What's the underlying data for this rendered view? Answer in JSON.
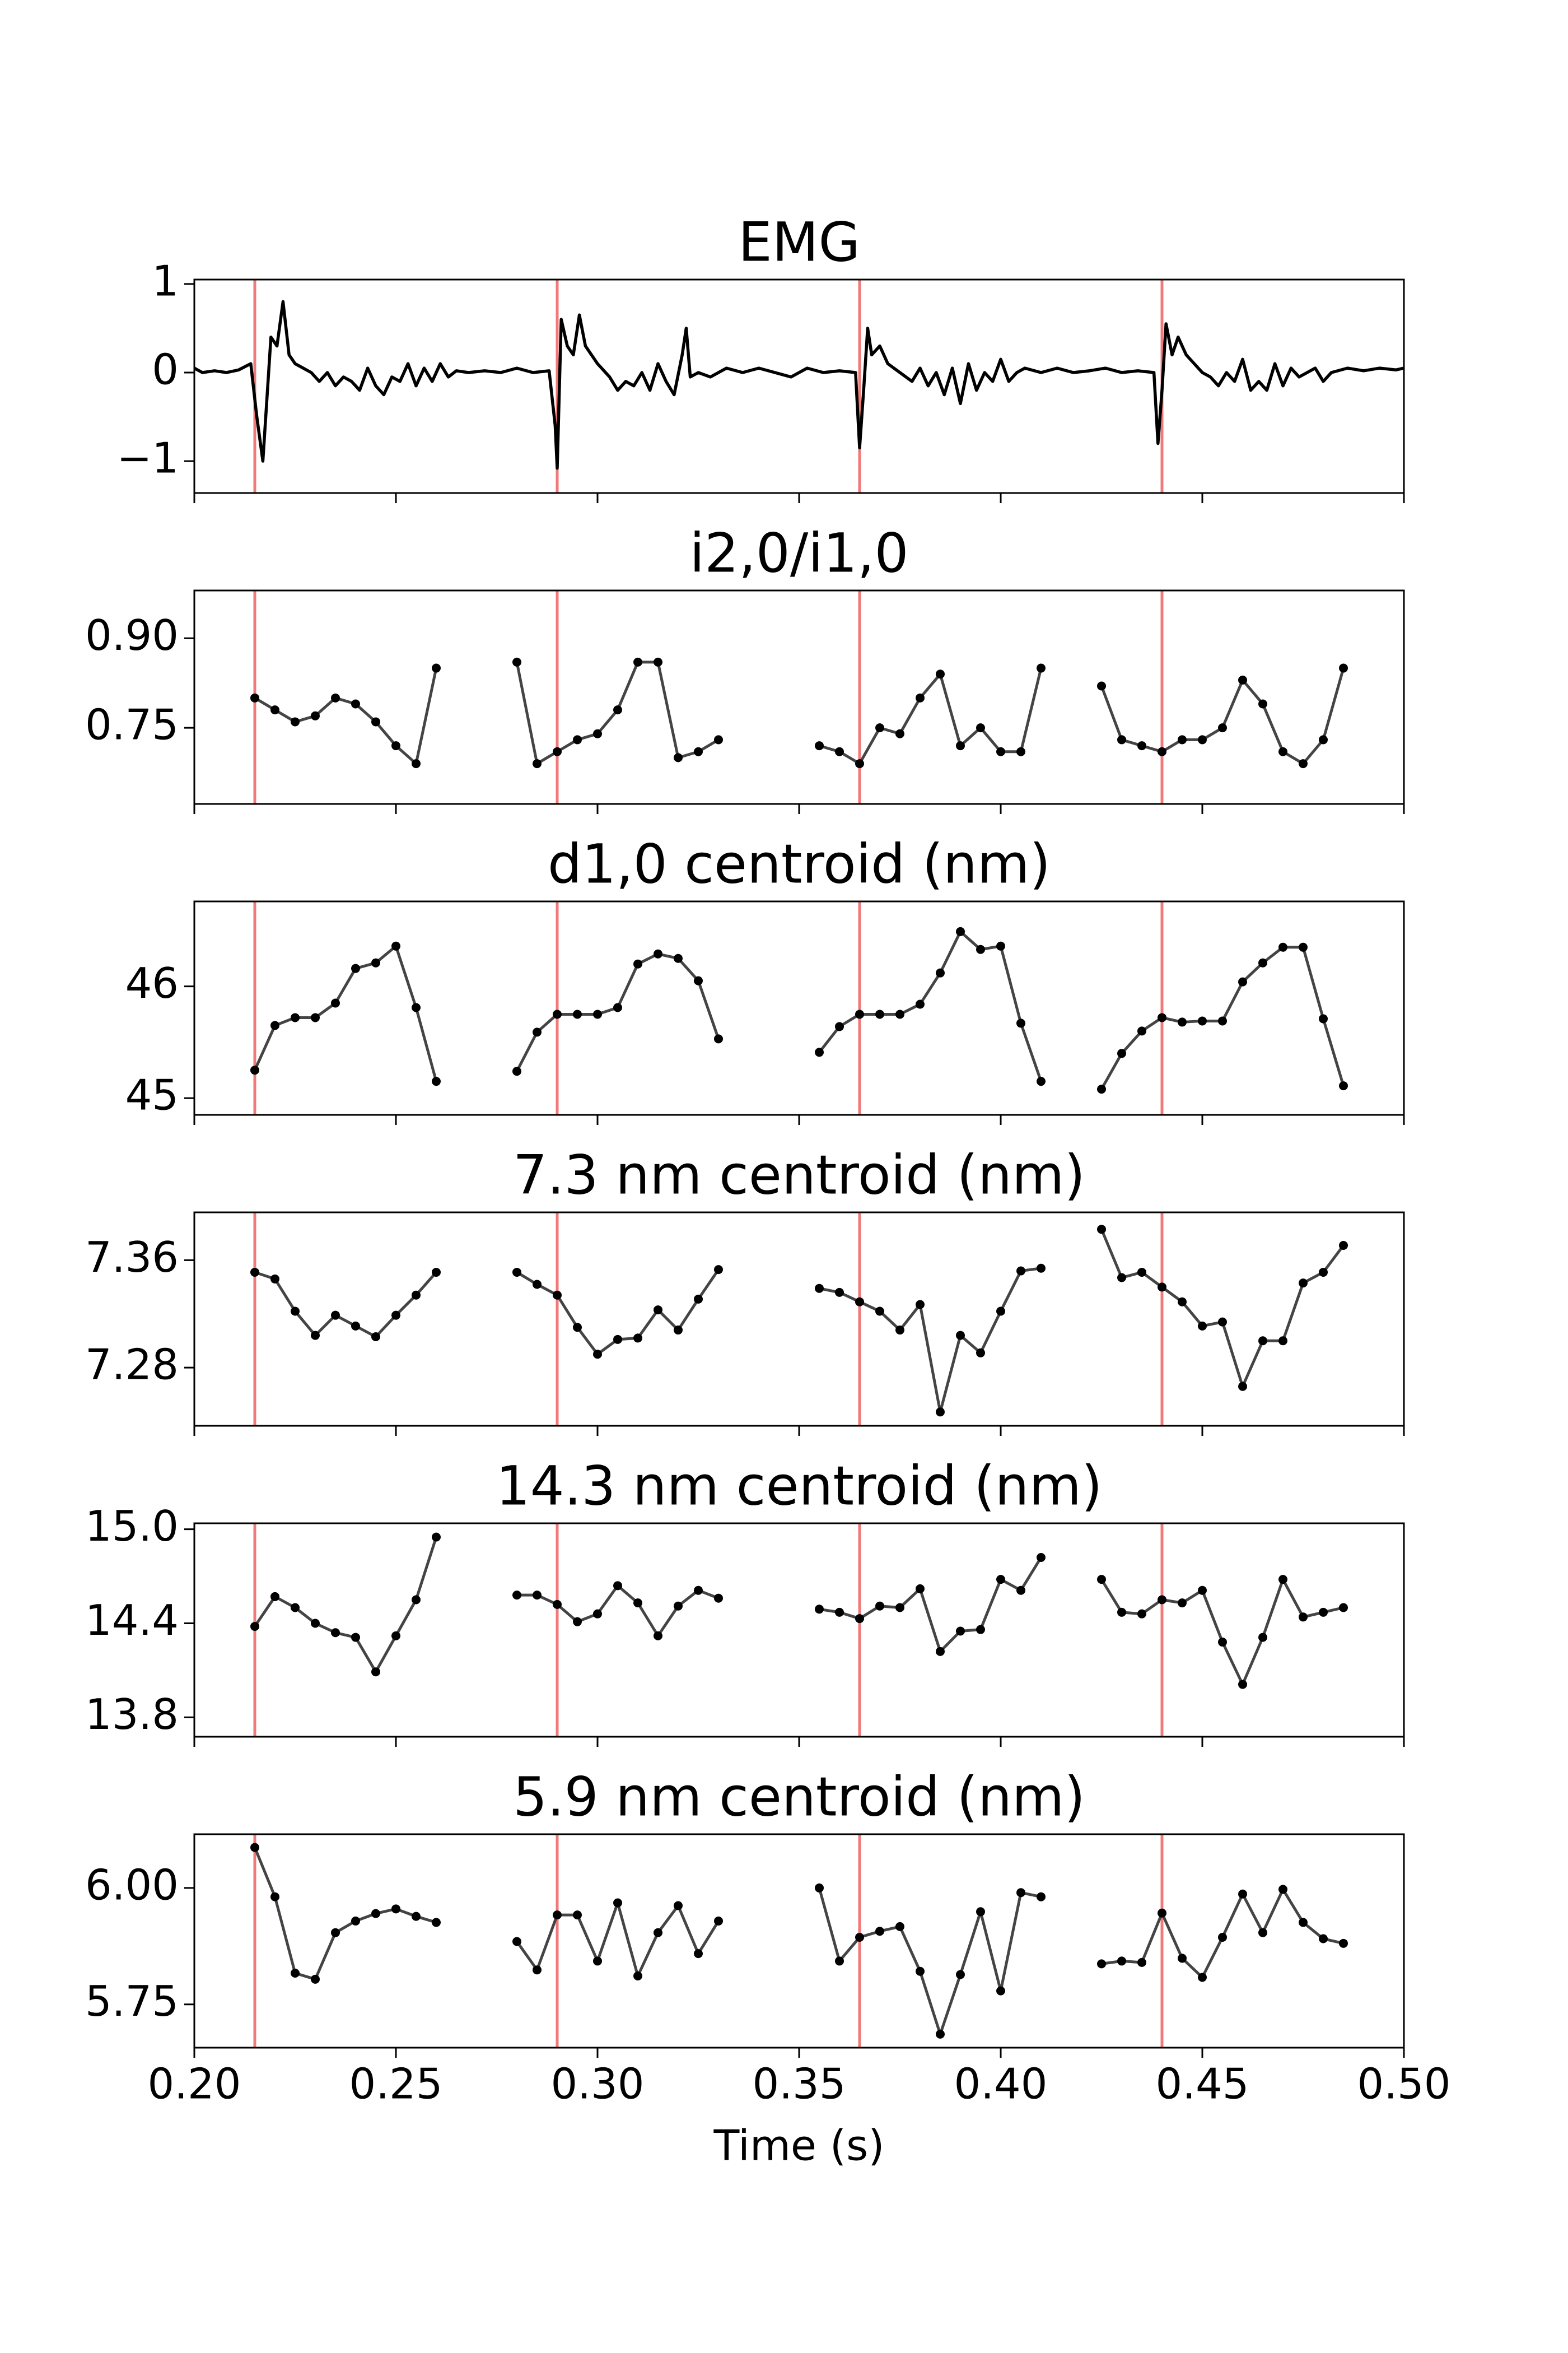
{
  "chart_data": [
    {
      "type": "line",
      "title": "EMG",
      "color": "#000000",
      "markers": false,
      "vline_color": "#f07a7a",
      "xlim": [
        0.2,
        0.5
      ],
      "xticks": [
        {
          "value": 0.2,
          "label": "0.20"
        },
        {
          "value": 0.25,
          "label": "0.25"
        },
        {
          "value": 0.3,
          "label": "0.30"
        },
        {
          "value": 0.35,
          "label": "0.35"
        },
        {
          "value": 0.4,
          "label": "0.40"
        },
        {
          "value": 0.45,
          "label": "0.45"
        },
        {
          "value": 0.5,
          "label": "0.50"
        }
      ],
      "ylim": [
        -1.36,
        1.05
      ],
      "yticks": [
        1,
        0,
        {
          "value": -1,
          "label": "−1"
        }
      ],
      "vlines": [
        0.215,
        0.29,
        0.365,
        0.44
      ],
      "segments": [
        {
          "x": [
            0.2,
            0.202,
            0.205,
            0.208,
            0.211,
            0.214,
            0.2155,
            0.217,
            0.218,
            0.219,
            0.2205,
            0.222,
            0.2235,
            0.225,
            0.227,
            0.229,
            0.231,
            0.233,
            0.235,
            0.237,
            0.239,
            0.241,
            0.243,
            0.245,
            0.247,
            0.249,
            0.251,
            0.253,
            0.255,
            0.257,
            0.259,
            0.261,
            0.263,
            0.265,
            0.268,
            0.272,
            0.276,
            0.28,
            0.284,
            0.288,
            0.2895,
            0.29,
            0.291,
            0.2925,
            0.294,
            0.2955,
            0.297,
            0.3,
            0.303,
            0.305,
            0.307,
            0.309,
            0.311,
            0.313,
            0.315,
            0.317,
            0.319,
            0.321,
            0.322,
            0.323,
            0.325,
            0.328,
            0.332,
            0.336,
            0.34,
            0.344,
            0.348,
            0.352,
            0.356,
            0.36,
            0.364,
            0.365,
            0.366,
            0.367,
            0.368,
            0.37,
            0.372,
            0.375,
            0.378,
            0.38,
            0.382,
            0.384,
            0.386,
            0.388,
            0.39,
            0.392,
            0.394,
            0.396,
            0.398,
            0.4,
            0.402,
            0.404,
            0.406,
            0.41,
            0.414,
            0.418,
            0.422,
            0.426,
            0.43,
            0.434,
            0.438,
            0.439,
            0.44,
            0.441,
            0.4425,
            0.444,
            0.446,
            0.448,
            0.45,
            0.452,
            0.454,
            0.456,
            0.458,
            0.46,
            0.462,
            0.464,
            0.466,
            0.468,
            0.47,
            0.472,
            0.474,
            0.476,
            0.478,
            0.48,
            0.482,
            0.486,
            0.49,
            0.494,
            0.498,
            0.5
          ],
          "values": [
            0.05,
            0,
            0.02,
            0,
            0.03,
            0.1,
            -0.5,
            -1.0,
            -0.3,
            0.4,
            0.3,
            0.8,
            0.2,
            0.1,
            0.05,
            0,
            -0.1,
            0,
            -0.15,
            -0.05,
            -0.1,
            -0.2,
            0.05,
            -0.15,
            -0.25,
            -0.05,
            -0.1,
            0.1,
            -0.15,
            0.05,
            -0.1,
            0.1,
            -0.05,
            0.02,
            0,
            0.02,
            0,
            0.05,
            0,
            0.02,
            -0.6,
            -1.08,
            0.6,
            0.3,
            0.2,
            0.65,
            0.3,
            0.1,
            -0.05,
            -0.2,
            -0.1,
            -0.15,
            0,
            -0.2,
            0.1,
            -0.1,
            -0.25,
            0.2,
            0.5,
            -0.05,
            0,
            -0.05,
            0.05,
            0,
            0.05,
            0,
            -0.05,
            0.05,
            0,
            0.02,
            0,
            -0.85,
            -0.2,
            0.5,
            0.2,
            0.3,
            0.1,
            0,
            -0.1,
            0.05,
            -0.15,
            0,
            -0.25,
            0.05,
            -0.35,
            0.1,
            -0.2,
            0,
            -0.1,
            0.15,
            -0.1,
            0,
            0.05,
            0,
            0.05,
            0,
            0.02,
            0.05,
            0,
            0.02,
            0,
            -0.8,
            -0.2,
            0.55,
            0.2,
            0.4,
            0.2,
            0.1,
            0,
            -0.05,
            -0.15,
            0,
            -0.1,
            0.15,
            -0.2,
            -0.1,
            -0.2,
            0.1,
            -0.15,
            0.05,
            -0.05,
            0,
            0.05,
            -0.1,
            0,
            0.05,
            0.02,
            0.05,
            0.03,
            0.05
          ]
        }
      ]
    },
    {
      "type": "line",
      "title": "i2,0/i1,0",
      "color": "#444444",
      "markers": true,
      "vline_color": "#f07a7a",
      "xlim": [
        0.2,
        0.5
      ],
      "xticks": [
        0.2,
        0.25,
        0.3,
        0.35,
        0.4,
        0.45,
        0.5
      ],
      "ylim": [
        0.6225,
        0.98
      ],
      "yticks": [
        {
          "value": 0.9,
          "label": "0.90"
        },
        0.75
      ],
      "vlines": [
        0.215,
        0.29,
        0.365,
        0.44
      ],
      "segments": [
        {
          "x": [
            0.215,
            0.22,
            0.225,
            0.23,
            0.235,
            0.24,
            0.245,
            0.25,
            0.255,
            0.26
          ],
          "values": [
            0.8,
            0.78,
            0.76,
            0.77,
            0.8,
            0.79,
            0.76,
            0.72,
            0.69,
            0.85
          ]
        },
        {
          "x": [
            0.28,
            0.285,
            0.29,
            0.295,
            0.3,
            0.305,
            0.31,
            0.315,
            0.32,
            0.325,
            0.33
          ],
          "values": [
            0.86,
            0.69,
            0.71,
            0.73,
            0.74,
            0.78,
            0.86,
            0.86,
            0.7,
            0.71,
            0.73
          ]
        },
        {
          "x": [
            0.355,
            0.36,
            0.365,
            0.37,
            0.375,
            0.38,
            0.385,
            0.39,
            0.395,
            0.4,
            0.405,
            0.41
          ],
          "values": [
            0.72,
            0.71,
            0.69,
            0.75,
            0.74,
            0.8,
            0.84,
            0.72,
            0.75,
            0.71,
            0.71,
            0.85
          ]
        },
        {
          "x": [
            0.425,
            0.43,
            0.435,
            0.44,
            0.445,
            0.45,
            0.455,
            0.46,
            0.465,
            0.47,
            0.475,
            0.48,
            0.485
          ],
          "values": [
            0.82,
            0.73,
            0.72,
            0.71,
            0.73,
            0.73,
            0.75,
            0.83,
            0.79,
            0.71,
            0.69,
            0.73,
            0.85
          ]
        }
      ]
    },
    {
      "type": "line",
      "title": "d1,0 centroid (nm)",
      "color": "#444444",
      "markers": true,
      "vline_color": "#f07a7a",
      "xlim": [
        0.2,
        0.5
      ],
      "xticks": [
        0.2,
        0.25,
        0.3,
        0.35,
        0.4,
        0.45,
        0.5
      ],
      "ylim": [
        44.85,
        46.76
      ],
      "yticks": [
        46,
        45
      ],
      "vlines": [
        0.215,
        0.29,
        0.365,
        0.44
      ],
      "segments": [
        {
          "x": [
            0.215,
            0.22,
            0.225,
            0.23,
            0.235,
            0.24,
            0.245,
            0.25,
            0.255,
            0.26
          ],
          "values": [
            45.25,
            45.65,
            45.72,
            45.72,
            45.85,
            46.16,
            46.21,
            46.36,
            45.81,
            45.15
          ]
        },
        {
          "x": [
            0.28,
            0.285,
            0.29,
            0.295,
            0.3,
            0.305,
            0.31,
            0.315,
            0.32,
            0.325,
            0.33
          ],
          "values": [
            45.24,
            45.59,
            45.75,
            45.75,
            45.75,
            45.81,
            46.2,
            46.29,
            46.25,
            46.05,
            45.53
          ]
        },
        {
          "x": [
            0.355,
            0.36,
            0.365,
            0.37,
            0.375,
            0.38,
            0.385,
            0.39,
            0.395,
            0.4,
            0.405,
            0.41
          ],
          "values": [
            45.41,
            45.64,
            45.75,
            45.75,
            45.75,
            45.84,
            46.12,
            46.49,
            46.33,
            46.36,
            45.67,
            45.15
          ]
        },
        {
          "x": [
            0.425,
            0.43,
            0.435,
            0.44,
            0.445,
            0.45,
            0.455,
            0.46,
            0.465,
            0.47,
            0.475,
            0.48,
            0.485
          ],
          "values": [
            45.08,
            45.4,
            45.6,
            45.72,
            45.68,
            45.69,
            45.69,
            46.04,
            46.21,
            46.35,
            46.35,
            45.71,
            45.11
          ]
        }
      ]
    },
    {
      "type": "line",
      "title": "7.3 nm centroid (nm)",
      "color": "#444444",
      "markers": true,
      "vline_color": "#f07a7a",
      "xlim": [
        0.2,
        0.5
      ],
      "xticks": [
        0.2,
        0.25,
        0.3,
        0.35,
        0.4,
        0.45,
        0.5
      ],
      "ylim": [
        7.2367,
        7.3956
      ],
      "yticks": [
        7.36,
        7.28
      ],
      "vlines": [
        0.215,
        0.29,
        0.365,
        0.44
      ],
      "segments": [
        {
          "x": [
            0.215,
            0.22,
            0.225,
            0.23,
            0.235,
            0.24,
            0.245,
            0.25,
            0.255,
            0.26
          ],
          "values": [
            7.351,
            7.346,
            7.322,
            7.304,
            7.319,
            7.311,
            7.303,
            7.319,
            7.334,
            7.351
          ]
        },
        {
          "x": [
            0.28,
            0.285,
            0.29,
            0.295,
            0.3,
            0.305,
            0.31,
            0.315,
            0.32,
            0.325,
            0.33
          ],
          "values": [
            7.351,
            7.342,
            7.334,
            7.31,
            7.29,
            7.301,
            7.302,
            7.323,
            7.308,
            7.331,
            7.353
          ]
        },
        {
          "x": [
            0.355,
            0.36,
            0.365,
            0.37,
            0.375,
            0.38,
            0.385,
            0.39,
            0.395,
            0.4,
            0.405,
            0.41
          ],
          "values": [
            7.339,
            7.336,
            7.329,
            7.322,
            7.308,
            7.327,
            7.247,
            7.304,
            7.291,
            7.322,
            7.352,
            7.354
          ]
        },
        {
          "x": [
            0.425,
            0.43,
            0.435,
            0.44,
            0.445,
            0.45,
            0.455,
            0.46,
            0.465,
            0.47,
            0.475,
            0.48,
            0.485
          ],
          "values": [
            7.383,
            7.347,
            7.351,
            7.34,
            7.329,
            7.311,
            7.314,
            7.266,
            7.3,
            7.3,
            7.343,
            7.351,
            7.371
          ]
        }
      ]
    },
    {
      "type": "line",
      "title": "14.3 nm centroid (nm)",
      "color": "#444444",
      "markers": true,
      "vline_color": "#f07a7a",
      "xlim": [
        0.2,
        0.5
      ],
      "xticks": [
        0.2,
        0.25,
        0.3,
        0.35,
        0.4,
        0.45,
        0.5
      ],
      "ylim": [
        13.676,
        15.038
      ],
      "yticks": [
        {
          "value": 15,
          "label": "15.0"
        },
        14.4,
        13.8
      ],
      "vlines": [
        0.215,
        0.29,
        0.365,
        0.44
      ],
      "segments": [
        {
          "x": [
            0.215,
            0.22,
            0.225,
            0.23,
            0.235,
            0.24,
            0.245,
            0.25,
            0.255,
            0.26
          ],
          "values": [
            14.38,
            14.57,
            14.5,
            14.4,
            14.34,
            14.31,
            14.09,
            14.32,
            14.55,
            14.95
          ]
        },
        {
          "x": [
            0.28,
            0.285,
            0.29,
            0.295,
            0.3,
            0.305,
            0.31,
            0.315,
            0.32,
            0.325,
            0.33
          ],
          "values": [
            14.58,
            14.58,
            14.52,
            14.41,
            14.46,
            14.64,
            14.53,
            14.32,
            14.51,
            14.61,
            14.56
          ]
        },
        {
          "x": [
            0.355,
            0.36,
            0.365,
            0.37,
            0.375,
            0.38,
            0.385,
            0.39,
            0.395,
            0.4,
            0.405,
            0.41
          ],
          "values": [
            14.49,
            14.47,
            14.43,
            14.51,
            14.5,
            14.62,
            14.22,
            14.35,
            14.36,
            14.68,
            14.61,
            14.82
          ]
        },
        {
          "x": [
            0.425,
            0.43,
            0.435,
            0.44,
            0.445,
            0.45,
            0.455,
            0.46,
            0.465,
            0.47,
            0.475,
            0.48,
            0.485
          ],
          "values": [
            14.68,
            14.47,
            14.46,
            14.55,
            14.53,
            14.61,
            14.28,
            14.01,
            14.31,
            14.68,
            14.44,
            14.47,
            14.5
          ]
        }
      ]
    },
    {
      "type": "line",
      "title": "5.9 nm centroid (nm)",
      "color": "#444444",
      "markers": true,
      "vline_color": "#f07a7a",
      "xlabel": "Time (s)",
      "xlim": [
        0.2,
        0.5
      ],
      "xticks": [
        {
          "value": 0.2,
          "label": "0.20"
        },
        {
          "value": 0.25,
          "label": "0.25"
        },
        {
          "value": 0.3,
          "label": "0.30"
        },
        {
          "value": 0.35,
          "label": "0.35"
        },
        {
          "value": 0.4,
          "label": "0.40"
        },
        {
          "value": 0.45,
          "label": "0.45"
        },
        {
          "value": 0.5,
          "label": "0.50"
        }
      ],
      "ylim": [
        5.657,
        6.1154
      ],
      "yticks": [
        {
          "value": 6,
          "label": "6.00"
        },
        5.75
      ],
      "vlines": [
        0.215,
        0.29,
        0.365,
        0.44
      ],
      "segments": [
        {
          "x": [
            0.215,
            0.22,
            0.225,
            0.23,
            0.235,
            0.24,
            0.245,
            0.25,
            0.255,
            0.26
          ],
          "values": [
            6.087,
            5.981,
            5.817,
            5.804,
            5.904,
            5.929,
            5.945,
            5.955,
            5.939,
            5.926
          ]
        },
        {
          "x": [
            0.28,
            0.285,
            0.29,
            0.295,
            0.3,
            0.305,
            0.31,
            0.315,
            0.32,
            0.325,
            0.33
          ],
          "values": [
            5.885,
            5.824,
            5.942,
            5.942,
            5.843,
            5.968,
            5.811,
            5.904,
            5.962,
            5.859,
            5.929
          ]
        },
        {
          "x": [
            0.355,
            0.36,
            0.365,
            0.37,
            0.375,
            0.38,
            0.385,
            0.39,
            0.395,
            0.4,
            0.405,
            0.41
          ],
          "values": [
            6.0,
            5.843,
            5.894,
            5.907,
            5.917,
            5.821,
            5.686,
            5.814,
            5.949,
            5.779,
            5.99,
            5.981
          ]
        },
        {
          "x": [
            0.425,
            0.43,
            0.435,
            0.44,
            0.445,
            0.45,
            0.455,
            0.46,
            0.465,
            0.47,
            0.475,
            0.48,
            0.485
          ],
          "values": [
            5.837,
            5.843,
            5.84,
            5.946,
            5.849,
            5.808,
            5.894,
            5.987,
            5.904,
            5.997,
            5.926,
            5.891,
            5.881
          ]
        }
      ]
    }
  ]
}
